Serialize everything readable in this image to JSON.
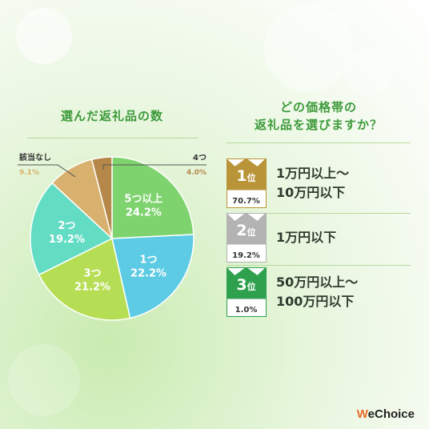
{
  "left_panel": {
    "title": "選んだ返礼品の数"
  },
  "right_panel": {
    "title_line1": "どの価格帯の",
    "title_line2": "返礼品を選びますか？"
  },
  "chart_data": {
    "type": "pie",
    "title": "選んだ返礼品の数",
    "start": "12 o'clock, clockwise",
    "slices": [
      {
        "label": "5つ以上",
        "value": 24.2,
        "display": "24.2%",
        "color": "#7ed36e",
        "label_color": "#ffffff"
      },
      {
        "label": "1つ",
        "value": 22.2,
        "display": "22.2%",
        "color": "#5dcbe4",
        "label_color": "#ffffff"
      },
      {
        "label": "3つ",
        "value": 21.2,
        "display": "21.2%",
        "color": "#b6de55",
        "label_color": "#ffffff"
      },
      {
        "label": "2つ",
        "value": 19.2,
        "display": "19.2%",
        "color": "#63dcc4",
        "label_color": "#ffffff"
      },
      {
        "label": "該当なし",
        "value": 9.1,
        "display": "9.1%",
        "color": "#d9b16e",
        "label_color": "#333333"
      },
      {
        "label": "4つ",
        "value": 4.0,
        "display": "4.0%",
        "color": "#b5884a",
        "label_color": "#333333"
      }
    ]
  },
  "ranking": [
    {
      "rank": "1",
      "suffix": "位",
      "percent": "70.7%",
      "line1": "1万円以上〜",
      "line2": "10万円以下",
      "color": "#b99439"
    },
    {
      "rank": "2",
      "suffix": "位",
      "percent": "19.2%",
      "line1": "1万円以下",
      "line2": "",
      "color": "#b3b3b3"
    },
    {
      "rank": "3",
      "suffix": "位",
      "percent": "1.0%",
      "line1": "50万円以上〜",
      "line2": "100万円以下",
      "color": "#2fa04d"
    }
  ],
  "logo": {
    "mark": "W",
    "text": "eChoice"
  }
}
